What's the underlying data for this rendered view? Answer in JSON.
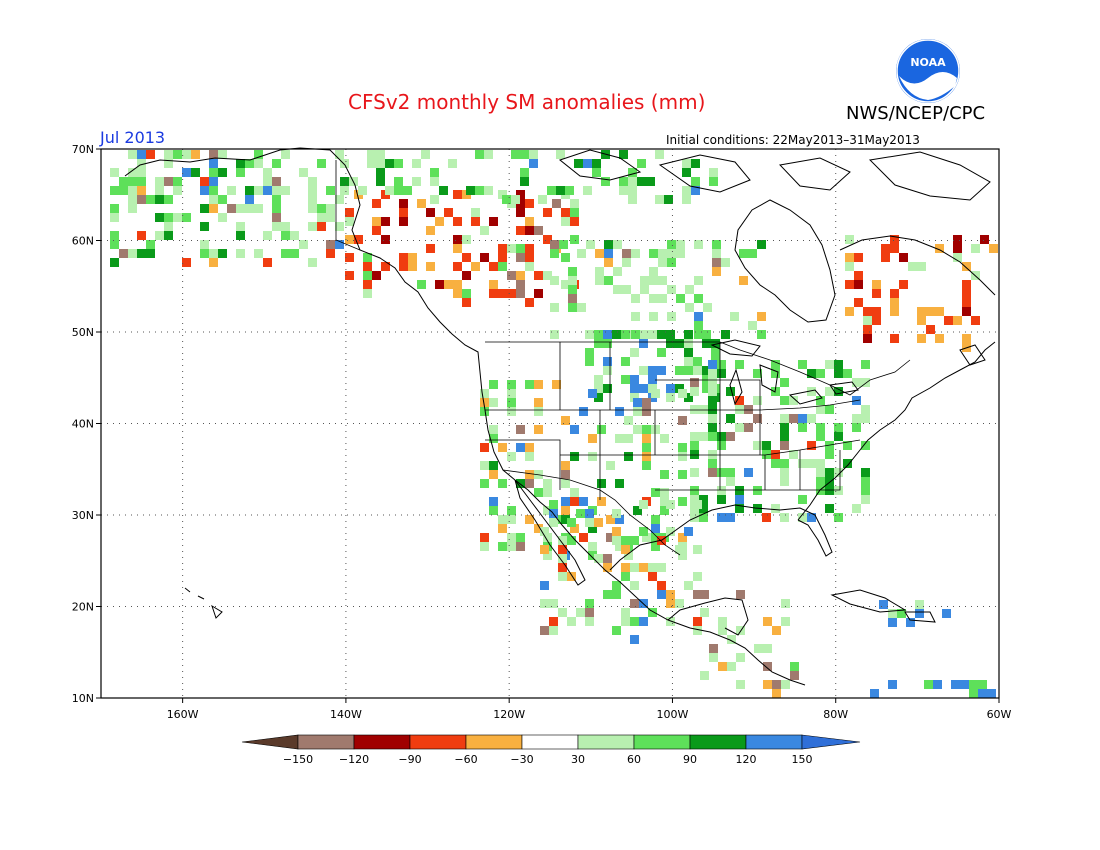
{
  "header": {
    "title": "CFSv2 monthly SM anomalies (mm)",
    "agency": "NWS/NCEP/CPC",
    "month": "Jul 2013",
    "initial_conditions": "Initial conditions: 22May2013–31May2013",
    "logo_text": "NOAA"
  },
  "map": {
    "lat_labels": [
      "70N",
      "60N",
      "50N",
      "40N",
      "30N",
      "20N",
      "10N"
    ],
    "lon_labels": [
      "160W",
      "140W",
      "120W",
      "100W",
      "80W",
      "60W"
    ],
    "extent": {
      "lon_min": -170,
      "lon_max": -60,
      "lat_min": 10,
      "lat_max": 70
    }
  },
  "legend": {
    "tick_labels": [
      "−150",
      "−120",
      "−90",
      "−60",
      "−30",
      "30",
      "60",
      "90",
      "120",
      "150"
    ],
    "colors": [
      "#5a3a2a",
      "#a07a6e",
      "#a00000",
      "#f03d10",
      "#f8b040",
      "#ffffff",
      "#b8f0b0",
      "#5ee05a",
      "#0a9a1a",
      "#3a88e0",
      "#2f6fd8"
    ]
  },
  "colors": {
    "title": "#e8161b",
    "month": "#1a3ae0",
    "noaa_blue": "#1a66e0"
  }
}
